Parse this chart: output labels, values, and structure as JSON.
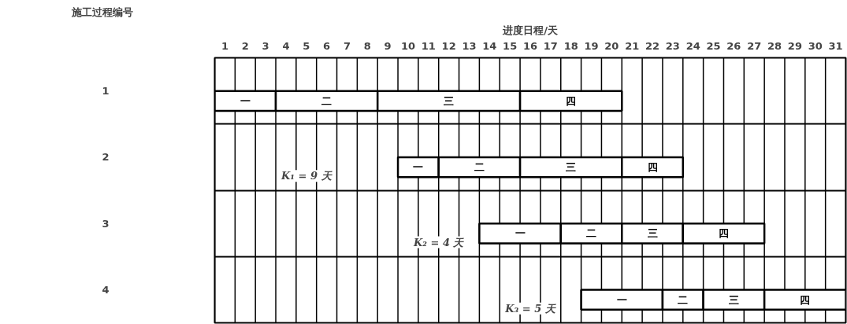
{
  "chart_data": {
    "type": "bar",
    "orientation": "horizontal",
    "xlabel": "进度日程/天",
    "ylabel": "施工过程编号",
    "categories": [
      "1",
      "2",
      "3",
      "4"
    ],
    "series": [
      {
        "name": "一",
        "color": "#ffffff",
        "base": [
          0,
          9,
          13,
          18
        ],
        "values": [
          3,
          2,
          4,
          4
        ]
      },
      {
        "name": "二",
        "color": "#ffffff",
        "base": [
          3,
          11,
          17,
          22
        ],
        "values": [
          5,
          4,
          3,
          2
        ]
      },
      {
        "name": "三",
        "color": "#ffffff",
        "base": [
          8,
          15,
          20,
          24
        ],
        "values": [
          7,
          5,
          3,
          3
        ]
      },
      {
        "name": "四",
        "color": "#ffffff",
        "base": [
          15,
          20,
          23,
          27
        ],
        "values": [
          5,
          3,
          4,
          4
        ]
      }
    ],
    "xlim": [
      0,
      31
    ],
    "xticks": [
      {
        "value": 0,
        "label": null
      },
      {
        "value": 0.5,
        "label": "1"
      },
      {
        "value": 1,
        "label": null
      },
      {
        "value": 1.5,
        "label": "2"
      },
      {
        "value": 2,
        "label": null
      },
      {
        "value": 2.5,
        "label": "3"
      },
      {
        "value": 3,
        "label": null
      },
      {
        "value": 3.5,
        "label": "4"
      },
      {
        "value": 4,
        "label": null
      },
      {
        "value": 4.5,
        "label": "5"
      },
      {
        "value": 5,
        "label": null
      },
      {
        "value": 5.5,
        "label": "6"
      },
      {
        "value": 6,
        "label": null
      },
      {
        "value": 6.5,
        "label": "7"
      },
      {
        "value": 7,
        "label": null
      },
      {
        "value": 7.5,
        "label": "8"
      },
      {
        "value": 8,
        "label": null
      },
      {
        "value": 8.5,
        "label": "9"
      },
      {
        "value": 9,
        "label": null
      },
      {
        "value": 9.5,
        "label": "10"
      },
      {
        "value": 10,
        "label": null
      },
      {
        "value": 10.5,
        "label": "11"
      },
      {
        "value": 11,
        "label": null
      },
      {
        "value": 11.5,
        "label": "12"
      },
      {
        "value": 12,
        "label": null
      },
      {
        "value": 12.5,
        "label": "13"
      },
      {
        "value": 13,
        "label": null
      },
      {
        "value": 13.5,
        "label": "14"
      },
      {
        "value": 14,
        "label": null
      },
      {
        "value": 14.5,
        "label": "15"
      },
      {
        "value": 15,
        "label": null
      },
      {
        "value": 15.5,
        "label": "16"
      },
      {
        "value": 16,
        "label": null
      },
      {
        "value": 16.5,
        "label": "17"
      },
      {
        "value": 17,
        "label": null
      },
      {
        "value": 17.5,
        "label": "18"
      },
      {
        "value": 18,
        "label": null
      },
      {
        "value": 18.5,
        "label": "19"
      },
      {
        "value": 19,
        "label": null
      },
      {
        "value": 19.5,
        "label": "20"
      },
      {
        "value": 20,
        "label": null
      },
      {
        "value": 20.5,
        "label": "21"
      },
      {
        "value": 21,
        "label": null
      },
      {
        "value": 21.5,
        "label": "22"
      },
      {
        "value": 22,
        "label": null
      },
      {
        "value": 22.5,
        "label": "23"
      },
      {
        "value": 23,
        "label": null
      },
      {
        "value": 23.5,
        "label": "24"
      },
      {
        "value": 24,
        "label": null
      },
      {
        "value": 24.5,
        "label": "25"
      },
      {
        "value": 25,
        "label": null
      },
      {
        "value": 25.5,
        "label": "26"
      },
      {
        "value": 26,
        "label": null
      },
      {
        "value": 26.5,
        "label": "27"
      },
      {
        "value": 27,
        "label": null
      },
      {
        "value": 27.5,
        "label": "28"
      },
      {
        "value": 28,
        "label": null
      },
      {
        "value": 28.5,
        "label": "29"
      },
      {
        "value": 29,
        "label": null
      },
      {
        "value": 29.5,
        "label": "30"
      },
      {
        "value": 30,
        "label": null
      },
      {
        "value": 30.5,
        "label": "31"
      },
      {
        "value": 31,
        "label": null
      }
    ],
    "grid": "x",
    "annotations": [
      "K₁ = 9 天",
      "K₂ = 4 天",
      "K₃ = 5 天"
    ]
  }
}
